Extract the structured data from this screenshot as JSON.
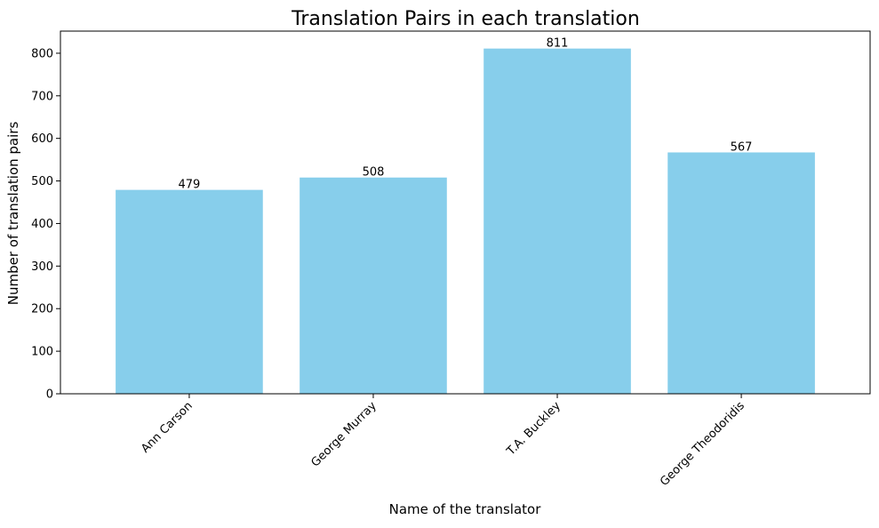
{
  "chart_data": {
    "type": "bar",
    "title": "Translation Pairs in each translation",
    "xlabel": "Name of the translator",
    "ylabel": "Number of translation pairs",
    "categories": [
      "Ann Carson",
      "George Murray",
      "T.A. Buckley",
      "George Theodoridis"
    ],
    "values": [
      479,
      508,
      811,
      567
    ],
    "data_labels": [
      "479",
      "508",
      "811",
      "567"
    ],
    "ylim": [
      0,
      852
    ],
    "yticks": [
      0,
      100,
      200,
      300,
      400,
      500,
      600,
      700,
      800
    ],
    "ytick_labels": [
      "0",
      "100",
      "200",
      "300",
      "400",
      "500",
      "600",
      "700",
      "800"
    ],
    "grid": false,
    "legend": "none",
    "bar_color": "#87CEEB",
    "axis_color": "#000000",
    "text_color": "#000000"
  }
}
